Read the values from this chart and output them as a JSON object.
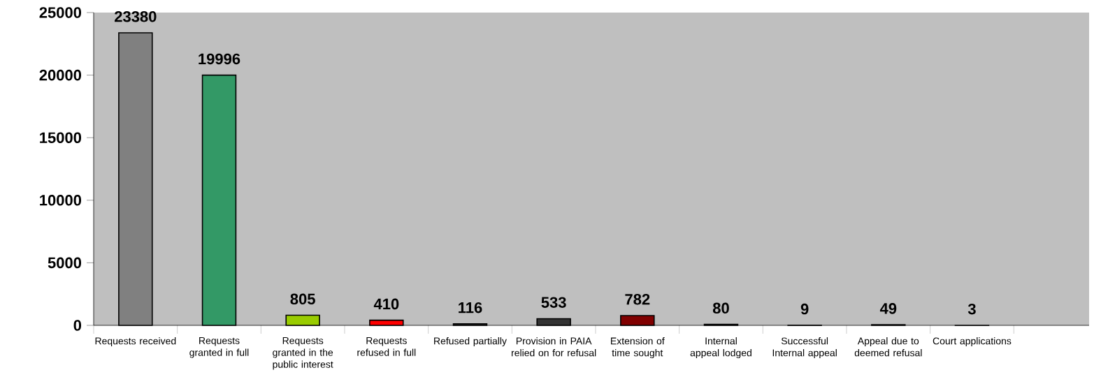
{
  "chart_data": {
    "type": "bar",
    "categories": [
      "Requests received",
      "Requests granted in full",
      "Requests granted in the public interest",
      "Requests refused in full",
      "Refused partially",
      "Provision in PAIA relied on for refusal",
      "Extension of time sought",
      "Internal appeal lodged",
      "Successful Internal appeal",
      "Appeal due to deemed refusal",
      "Court applications"
    ],
    "values": [
      23380,
      19996,
      805,
      410,
      116,
      533,
      782,
      80,
      9,
      49,
      3
    ],
    "colors": [
      "#808080",
      "#339966",
      "#99cc00",
      "#ff0000",
      "#333333",
      "#333333",
      "#800000",
      "#333333",
      "#333333",
      "#333333",
      "#333333"
    ],
    "ylim": [
      0,
      25000
    ],
    "yticks": [
      0,
      5000,
      10000,
      15000,
      20000,
      25000
    ],
    "data_labels": true
  }
}
